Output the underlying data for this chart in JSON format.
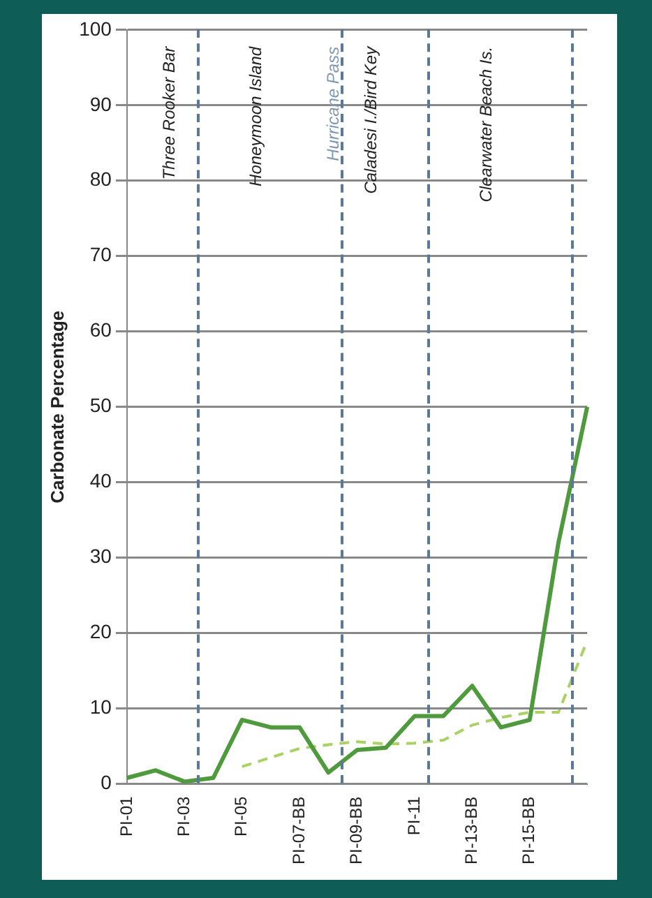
{
  "chart_data": {
    "type": "line",
    "ylabel": "Carbonate Percentage",
    "categories": [
      "PI-01",
      null,
      "PI-03",
      null,
      "PI-05",
      null,
      "PI-07-BB",
      null,
      "PI-09-BB",
      null,
      "PI-11",
      null,
      "PI-13-BB",
      null,
      "PI-15-BB",
      null,
      null
    ],
    "series": [
      {
        "color": "#4e9a3c",
        "line_style": "solid",
        "values": [
          0.8,
          1.8,
          0.3,
          0.8,
          8.5,
          7.5,
          7.5,
          1.5,
          4.5,
          4.8,
          9,
          9,
          13,
          7.5,
          8.5,
          32,
          50
        ]
      },
      {
        "color": "#a9d163",
        "line_style": "dashed",
        "values": [
          null,
          null,
          null,
          null,
          2.3,
          3.5,
          4.7,
          5.2,
          5.6,
          5.3,
          5.4,
          5.8,
          7.8,
          8.8,
          9.5,
          9.5,
          19
        ]
      }
    ],
    "ylim": [
      0,
      100
    ],
    "yticks": [
      0,
      10,
      20,
      30,
      40,
      50,
      60,
      70,
      80,
      90,
      100
    ],
    "grid": "y",
    "marker": "none",
    "legend": false,
    "annotations": [
      "Three Rooker Bar",
      "Honeymoon Island",
      "Hurricane Pass",
      "Caladesi I./Bird Key",
      "Clearwater Beach Is."
    ]
  }
}
